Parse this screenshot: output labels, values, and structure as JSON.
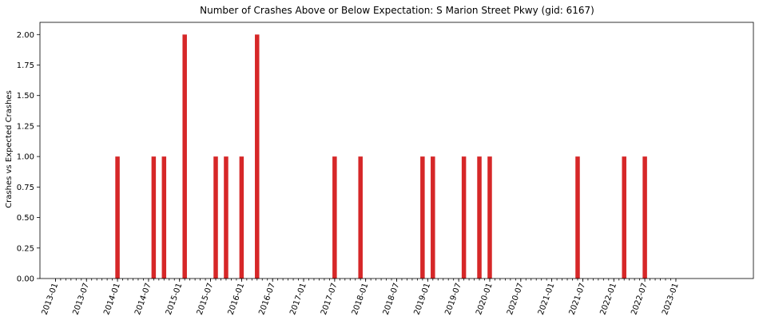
{
  "chart_data": {
    "type": "bar",
    "title": "Number of Crashes Above or Below Expectation: S Marion Street Pkwy (gid: 6167)",
    "xlabel": "",
    "ylabel": "Crashes vs Expected Crashes",
    "ylim": [
      0,
      2.1
    ],
    "yticks": [
      "0.00",
      "0.25",
      "0.50",
      "0.75",
      "1.00",
      "1.25",
      "1.50",
      "1.75",
      "2.00"
    ],
    "xlim": [
      "2012-10",
      "2024-04"
    ],
    "x_tick_labels": [
      "2013-01",
      "2013-07",
      "2014-01",
      "2014-07",
      "2015-01",
      "2015-07",
      "2016-01",
      "2016-07",
      "2017-01",
      "2017-07",
      "2018-01",
      "2018-07",
      "2019-01",
      "2019-07",
      "2020-01",
      "2020-07",
      "2021-01",
      "2021-07",
      "2022-01",
      "2022-07",
      "2023-01"
    ],
    "x_minor_tick_range": [
      "2013-01",
      "2023-01"
    ],
    "grid": false,
    "color": "#d62728",
    "series": [
      {
        "x": [
          "2014-01",
          "2014-08",
          "2014-10",
          "2015-02",
          "2015-08",
          "2015-10",
          "2016-01",
          "2016-04",
          "2017-07",
          "2017-12",
          "2018-12",
          "2019-02",
          "2019-08",
          "2019-11",
          "2020-01",
          "2021-06",
          "2022-03",
          "2022-07"
        ],
        "values": [
          1,
          1,
          1,
          2,
          1,
          1,
          1,
          2,
          1,
          1,
          1,
          1,
          1,
          1,
          1,
          1,
          1,
          1
        ]
      }
    ]
  }
}
